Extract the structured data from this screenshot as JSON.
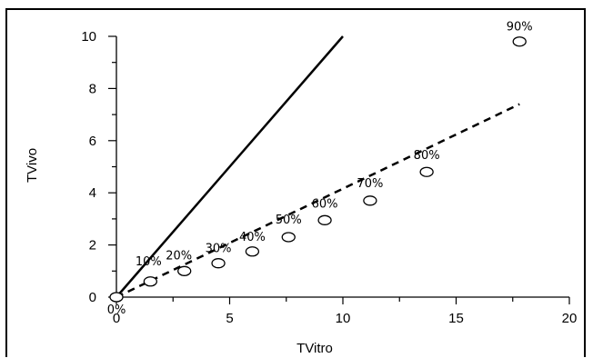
{
  "chart_data": {
    "type": "scatter",
    "title": "",
    "xlabel": "TVitro",
    "ylabel": "TVivo",
    "xlim": [
      0,
      20
    ],
    "ylim": [
      0,
      10
    ],
    "xticks": [
      0,
      5,
      10,
      15,
      20
    ],
    "yticks": [
      0,
      2,
      4,
      6,
      8,
      10
    ],
    "grid": false,
    "points": [
      {
        "label": "0%",
        "x": 0,
        "y": 0
      },
      {
        "label": "10%",
        "x": 1.5,
        "y": 0.6
      },
      {
        "label": "20%",
        "x": 3.0,
        "y": 1.0
      },
      {
        "label": "30%",
        "x": 4.5,
        "y": 1.3
      },
      {
        "label": "40%",
        "x": 6.0,
        "y": 1.75
      },
      {
        "label": "50%",
        "x": 7.6,
        "y": 2.3
      },
      {
        "label": "60%",
        "x": 9.2,
        "y": 2.95
      },
      {
        "label": "70%",
        "x": 11.2,
        "y": 3.7
      },
      {
        "label": "80%",
        "x": 13.7,
        "y": 4.8
      },
      {
        "label": "90%",
        "x": 17.8,
        "y": 9.8
      }
    ],
    "lines": [
      {
        "style": "solid",
        "x": [
          0,
          10
        ],
        "y": [
          0,
          10
        ]
      },
      {
        "style": "dashed",
        "x": [
          0,
          17.8
        ],
        "y": [
          0,
          7.4
        ]
      }
    ],
    "colors": {
      "ink": "#000000",
      "marker_fill": "#ffffff"
    }
  }
}
